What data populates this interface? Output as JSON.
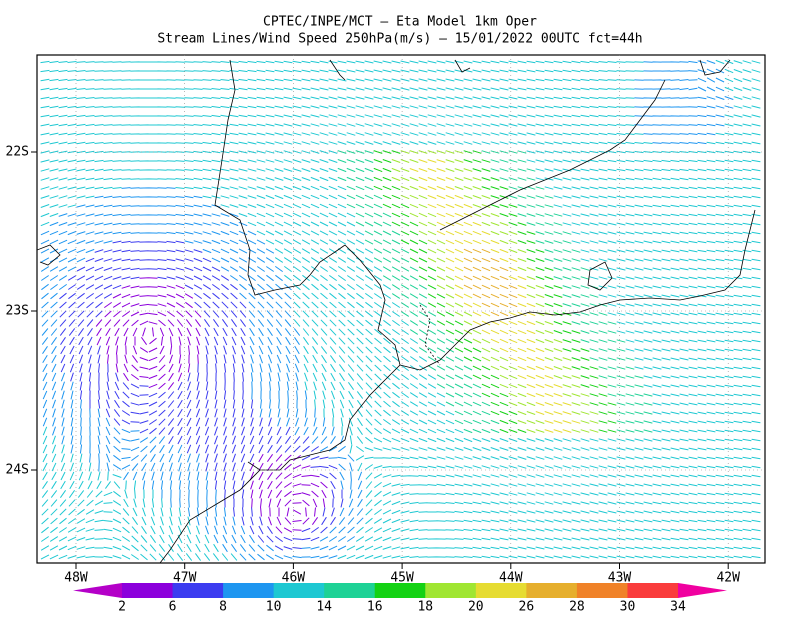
{
  "header": {
    "title": "CPTEC/INPE/MCT —  Eta Model 1km Oper",
    "subtitle": "Stream Lines/Wind Speed 250hPa(m/s) — 15/01/2022 00UTC fct=44h"
  },
  "map": {
    "x_labels": [
      "48W",
      "47W",
      "46W",
      "45W",
      "44W",
      "43W",
      "42W"
    ],
    "y_labels": [
      "22S",
      "23S",
      "24S"
    ]
  },
  "colorbar": {
    "labels": [
      2,
      6,
      8,
      10,
      14,
      16,
      18,
      20,
      26,
      28,
      30,
      34
    ],
    "colors": [
      "#b400c8",
      "#8c00dc",
      "#3c3cf0",
      "#1e96f0",
      "#1ec8d2",
      "#1ed296",
      "#14d214",
      "#a0e632",
      "#e6dc32",
      "#e6af2d",
      "#f08228",
      "#fa3c3c",
      "#f000a0"
    ]
  }
}
